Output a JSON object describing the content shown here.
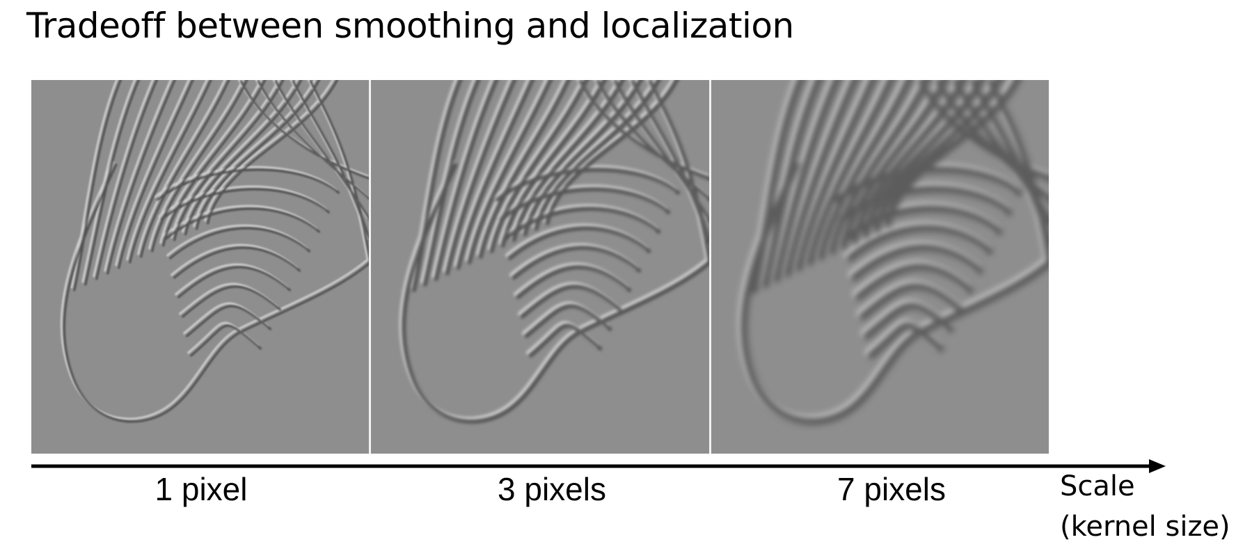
{
  "title": "Tradeoff between smoothing and localization",
  "panels": [
    {
      "label": "1 pixel",
      "kernel_size_px": 1,
      "icon": "zebra-edge-image"
    },
    {
      "label": "3 pixels",
      "kernel_size_px": 3,
      "icon": "zebra-edge-image"
    },
    {
      "label": "7 pixels",
      "kernel_size_px": 7,
      "icon": "zebra-edge-image"
    }
  ],
  "axis": {
    "label_line1": "Scale",
    "label_line2": "(kernel size)",
    "icon": "arrow-right-icon",
    "color": "#000000"
  },
  "colors": {
    "panel_background": "#8e8e8e"
  }
}
